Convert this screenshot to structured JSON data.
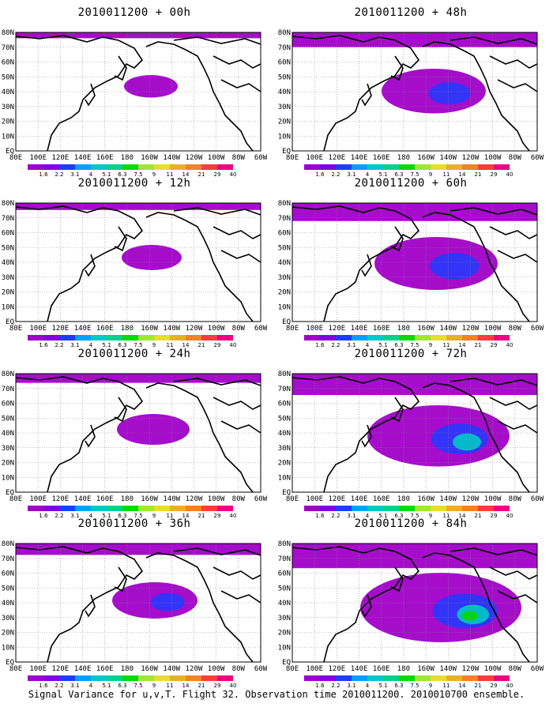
{
  "figure_caption": "Signal Variance for u,v,T. Flight 32. Observation time 2010011200. 2010010700 ensemble.",
  "lat_labels": [
    "80N",
    "70N",
    "60N",
    "50N",
    "40N",
    "30N",
    "20N",
    "10N",
    "EQ"
  ],
  "lon_labels": [
    "80E",
    "100E",
    "120E",
    "140E",
    "160E",
    "180",
    "160W",
    "140W",
    "120W",
    "100W",
    "80W",
    "60W"
  ],
  "colorbar": {
    "labels": [
      "1.6",
      "2.2",
      "3.1",
      "4",
      "5.1",
      "6.3",
      "7.5",
      "9",
      "11",
      "14",
      "21",
      "29",
      "40"
    ],
    "colors": [
      "#a000c8",
      "#8200dc",
      "#1e3cff",
      "#00a0ff",
      "#00c8c8",
      "#00d28c",
      "#00dc00",
      "#a0e632",
      "#e6dc32",
      "#e6af2d",
      "#f08228",
      "#fa3c3c",
      "#f00082"
    ]
  },
  "panels": [
    {
      "title": "2010011200 + 00h",
      "column": "left",
      "row": 0,
      "intensity": 0.05
    },
    {
      "title": "2010011200 + 12h",
      "column": "left",
      "row": 1,
      "intensity": 0.1
    },
    {
      "title": "2010011200 + 24h",
      "column": "left",
      "row": 2,
      "intensity": 0.2
    },
    {
      "title": "2010011200 + 36h",
      "column": "left",
      "row": 3,
      "intensity": 0.3
    },
    {
      "title": "2010011200 + 48h",
      "column": "right",
      "row": 0,
      "intensity": 0.45
    },
    {
      "title": "2010011200 + 60h",
      "column": "right",
      "row": 1,
      "intensity": 0.6
    },
    {
      "title": "2010011200 + 72h",
      "column": "right",
      "row": 2,
      "intensity": 0.75
    },
    {
      "title": "2010011200 + 84h",
      "column": "right",
      "row": 3,
      "intensity": 0.9
    }
  ]
}
